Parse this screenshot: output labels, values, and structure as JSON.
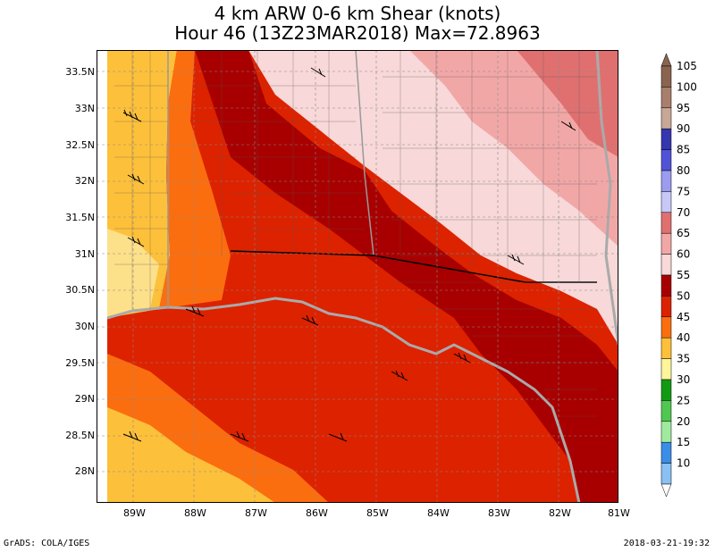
{
  "title_line1": "4 km ARW 0-6 km Shear (knots)",
  "title_line2": "Hour 46 (13Z23MAR2018) Max=72.8963",
  "lat_labels": [
    "33.5N",
    "33N",
    "32.5N",
    "32N",
    "31.5N",
    "31N",
    "30.5N",
    "30N",
    "29.5N",
    "29N",
    "28.5N",
    "28N"
  ],
  "lon_labels": [
    "89W",
    "88W",
    "87W",
    "86W",
    "85W",
    "84W",
    "83W",
    "82W",
    "81W"
  ],
  "colorbar": {
    "levels": [
      "105",
      "100",
      "95",
      "90",
      "85",
      "80",
      "75",
      "70",
      "65",
      "60",
      "55",
      "50",
      "45",
      "40",
      "35",
      "30",
      "25",
      "20",
      "15",
      "10"
    ],
    "colors": [
      "#8a6450",
      "#a97f6c",
      "#c8a798",
      "#3636b0",
      "#5252d8",
      "#9b9bf0",
      "#c8c8f8",
      "#e07070",
      "#f2a7a7",
      "#f8d8d8",
      "#a80000",
      "#dd2200",
      "#fb6e10",
      "#fdc03a",
      "#fff59a",
      "#129b12",
      "#50c850",
      "#a0eaa0",
      "#3a8ee8",
      "#8ac0f4"
    ]
  },
  "footer_left": "GrADS: COLA/IGES",
  "footer_right": "2018-03-21-19:32"
}
